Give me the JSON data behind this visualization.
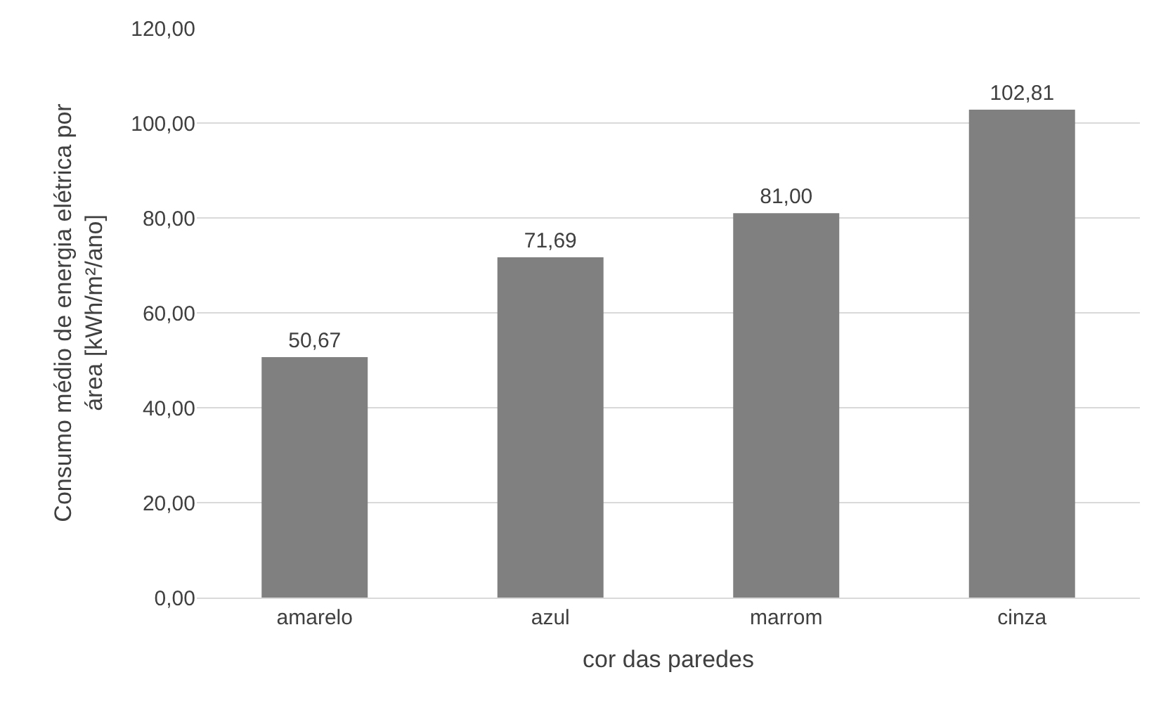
{
  "chart_data": {
    "type": "bar",
    "xlabel": "cor das paredes",
    "ylabel": "Consumo médio de energia elétrica por área [kWh/m²/ano]",
    "categories": [
      "amarelo",
      "azul",
      "marrom",
      "cinza"
    ],
    "values": [
      50.67,
      71.69,
      81.0,
      102.81
    ],
    "value_labels": [
      "50,67",
      "71,69",
      "81,00",
      "102,81"
    ],
    "color": "#808080",
    "ylim": [
      0,
      120
    ],
    "yticks": [
      {
        "value": 0,
        "label": "0,00"
      },
      {
        "value": 20,
        "label": "20,00"
      },
      {
        "value": 40,
        "label": "40,00"
      },
      {
        "value": 60,
        "label": "60,00"
      },
      {
        "value": 80,
        "label": "80,00"
      },
      {
        "value": 100,
        "label": "100,00"
      },
      {
        "value": 120,
        "label": "120,00"
      }
    ],
    "grid": "y",
    "legend": false
  }
}
